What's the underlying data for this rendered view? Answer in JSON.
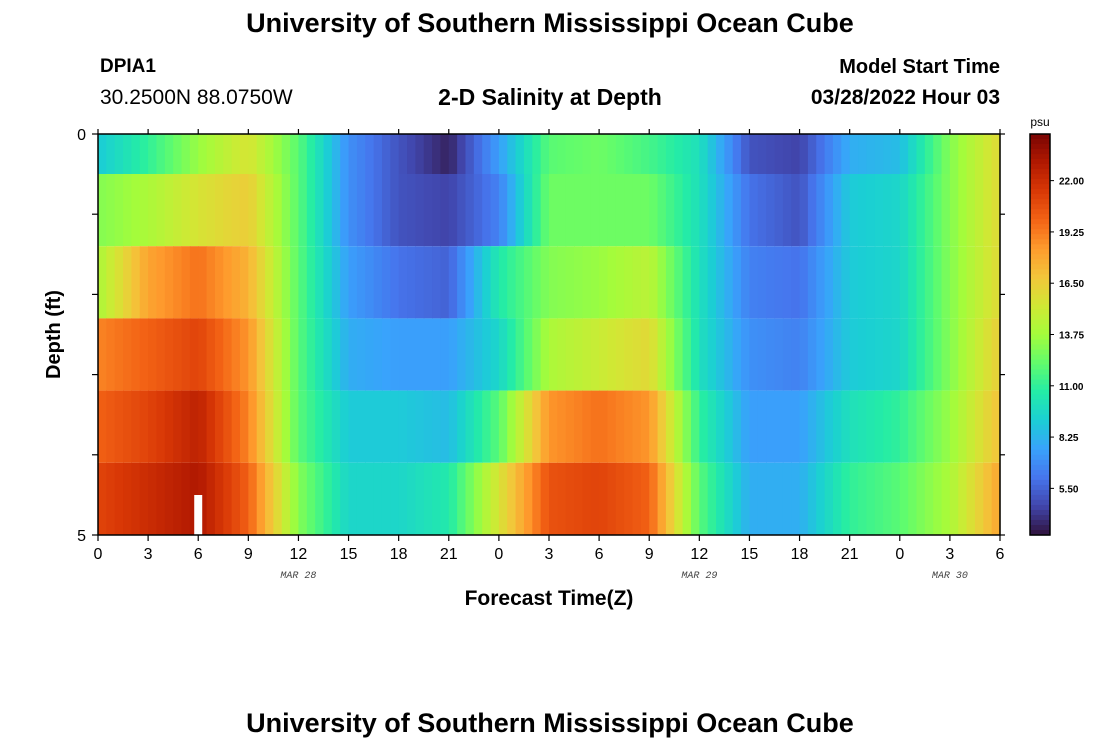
{
  "header": {
    "title": "University of Southern Mississippi Ocean Cube",
    "station": "DPIA1",
    "coords": "30.2500N  88.0750W",
    "subtitle": "2-D Salinity at Depth",
    "model_start_label": "Model Start Time",
    "model_start_value": "03/28/2022 Hour 03"
  },
  "footer": {
    "title": "University of Southern Mississippi Ocean Cube"
  },
  "chart_data": {
    "type": "heatmap",
    "title": "2-D Salinity at Depth",
    "xlabel": "Forecast Time(Z)",
    "ylabel": "Depth (ft)",
    "x_range_hours": [
      0,
      54
    ],
    "y_range": [
      0,
      5
    ],
    "y_ticks": [
      "0",
      "5"
    ],
    "x_ticks": [
      "0",
      "3",
      "6",
      "9",
      "12",
      "15",
      "18",
      "21",
      "0",
      "3",
      "6",
      "9",
      "12",
      "15",
      "18",
      "21",
      "0",
      "3",
      "6"
    ],
    "date_labels": [
      {
        "label": "MAR 28",
        "hour": 12
      },
      {
        "label": "MAR 29",
        "hour": 36
      },
      {
        "label": "MAR 30",
        "hour": 51
      }
    ],
    "colorbar": {
      "unit": "psu",
      "vmin": 3.0,
      "vmax": 24.5,
      "ticks": [
        "22.00",
        "19.25",
        "16.50",
        "13.75",
        "11.00",
        "8.25",
        "5.50"
      ],
      "colors": [
        "#30123b",
        "#4145ab",
        "#4675ed",
        "#39a2fc",
        "#1bcfd4",
        "#24eca6",
        "#61fc6c",
        "#a4fc3b",
        "#d1e834",
        "#f3c63a",
        "#fe9b2d",
        "#f36315",
        "#d93806",
        "#b11901",
        "#7a0403"
      ]
    },
    "depth_rows": [
      0,
      1,
      2,
      3,
      4
    ],
    "salinity_profile_hours": [
      0,
      3,
      6,
      9,
      12,
      15,
      18,
      21,
      24,
      27,
      30,
      33,
      36,
      39,
      42,
      45,
      48,
      51,
      54
    ],
    "salinity_profiles": [
      [
        9,
        11,
        13.5,
        15.5,
        12,
        7,
        5,
        3.5,
        7.5,
        12,
        12.5,
        11.5,
        10,
        5,
        4.5,
        8,
        8.5,
        13,
        16
      ],
      [
        13,
        14,
        15.5,
        16.5,
        12,
        7,
        5,
        4.5,
        6.5,
        12.5,
        12.5,
        12.5,
        10,
        6,
        5,
        9,
        9.5,
        13,
        16
      ],
      [
        14,
        18,
        19.5,
        17.5,
        12,
        7.5,
        6,
        5.5,
        10.5,
        13,
        13.5,
        14.5,
        10,
        6.5,
        6,
        9,
        9.5,
        13,
        16
      ],
      [
        19,
        20,
        21,
        18.5,
        12,
        8,
        7.5,
        7.5,
        9.5,
        14,
        15,
        16,
        10,
        7,
        6.5,
        9,
        9.5,
        13,
        16.5
      ],
      [
        20,
        21,
        22.5,
        19,
        12,
        9,
        9,
        8.5,
        12,
        18.5,
        19.5,
        18.5,
        11,
        7.5,
        7.5,
        10,
        11,
        13.5,
        17
      ],
      [
        21,
        22,
        23,
        20,
        13,
        9.5,
        9.5,
        10.5,
        15.5,
        20.5,
        21,
        20,
        12,
        8,
        8,
        11,
        12,
        14,
        18
      ]
    ],
    "gap_marker_hour": 6
  }
}
